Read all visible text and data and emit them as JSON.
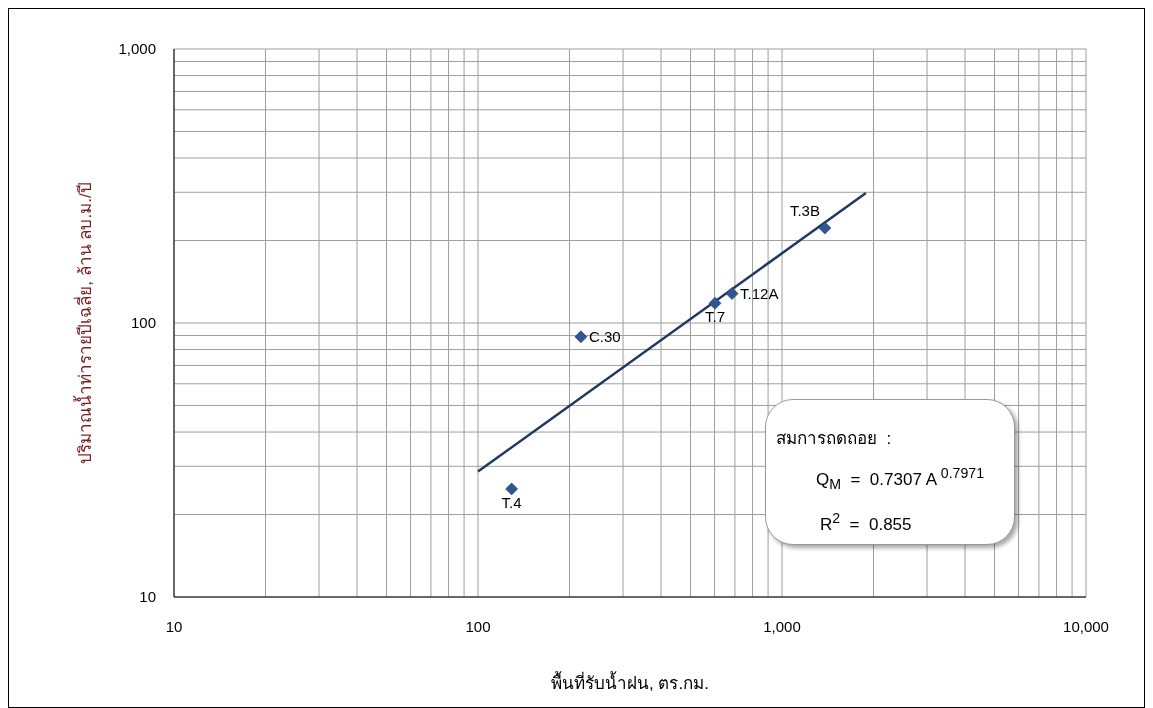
{
  "chart_data": {
    "type": "scatter",
    "xlabel": "พื้นที่รับน้ำฝน, ตร.กม.",
    "ylabel": "ปริมาณน้ำท่ารายปีเฉลี่ย, ล้าน ลบ.ม./ปี",
    "log": "xy",
    "grid": true,
    "marker": "diamond",
    "xlim": [
      10,
      10000
    ],
    "ylim": [
      10,
      1000
    ],
    "xticks": [
      10,
      {
        "value": 20,
        "label": null
      },
      {
        "value": 30,
        "label": null
      },
      {
        "value": 40,
        "label": null
      },
      {
        "value": 50,
        "label": null
      },
      {
        "value": 60,
        "label": null
      },
      {
        "value": 70,
        "label": null
      },
      {
        "value": 80,
        "label": null
      },
      {
        "value": 90,
        "label": null
      },
      100,
      {
        "value": 200,
        "label": null
      },
      {
        "value": 300,
        "label": null
      },
      {
        "value": 400,
        "label": null
      },
      {
        "value": 500,
        "label": null
      },
      {
        "value": 600,
        "label": null
      },
      {
        "value": 700,
        "label": null
      },
      {
        "value": 800,
        "label": null
      },
      {
        "value": 900,
        "label": null
      },
      {
        "value": 1000,
        "label": "1,000"
      },
      {
        "value": 2000,
        "label": null
      },
      {
        "value": 3000,
        "label": null
      },
      {
        "value": 4000,
        "label": null
      },
      {
        "value": 5000,
        "label": null
      },
      {
        "value": 6000,
        "label": null
      },
      {
        "value": 7000,
        "label": null
      },
      {
        "value": 8000,
        "label": null
      },
      {
        "value": 9000,
        "label": null
      },
      {
        "value": 10000,
        "label": "10,000"
      }
    ],
    "yticks": [
      10,
      {
        "value": 20,
        "label": null
      },
      {
        "value": 30,
        "label": null
      },
      {
        "value": 40,
        "label": null
      },
      {
        "value": 50,
        "label": null
      },
      {
        "value": 60,
        "label": null
      },
      {
        "value": 70,
        "label": null
      },
      {
        "value": 80,
        "label": null
      },
      {
        "value": 90,
        "label": null
      },
      100,
      {
        "value": 200,
        "label": null
      },
      {
        "value": 300,
        "label": null
      },
      {
        "value": 400,
        "label": null
      },
      {
        "value": 500,
        "label": null
      },
      {
        "value": 600,
        "label": null
      },
      {
        "value": 700,
        "label": null
      },
      {
        "value": 800,
        "label": null
      },
      {
        "value": 900,
        "label": null
      },
      {
        "value": 1000,
        "label": "1,000"
      }
    ],
    "series": [
      {
        "color": "#2f5597",
        "x": [
          129,
          218,
          602,
          685,
          1384
        ],
        "values": [
          24.8,
          89,
          118,
          128,
          222
        ]
      },
      {
        "type": "line",
        "color": "#1f3864",
        "marker": "none",
        "x": [
          100,
          1888
        ],
        "values": [
          28.7,
          298
        ]
      }
    ],
    "annotations": [
      {
        "text": "T.4",
        "x": 129,
        "y": 24.8
      },
      {
        "text": "C.30",
        "x": 218,
        "y": 89
      },
      {
        "text": "T.7",
        "x": 602,
        "y": 118
      },
      {
        "text": "T.12A",
        "x": 685,
        "y": 128
      },
      {
        "text": "T.3B",
        "x": 1384,
        "y": 222
      },
      "สมการถดถอย  :",
      "Q$_{M}$  =  0.7307 A $^{0.7971}$",
      "R$^{2}$  =  0.855"
    ]
  }
}
